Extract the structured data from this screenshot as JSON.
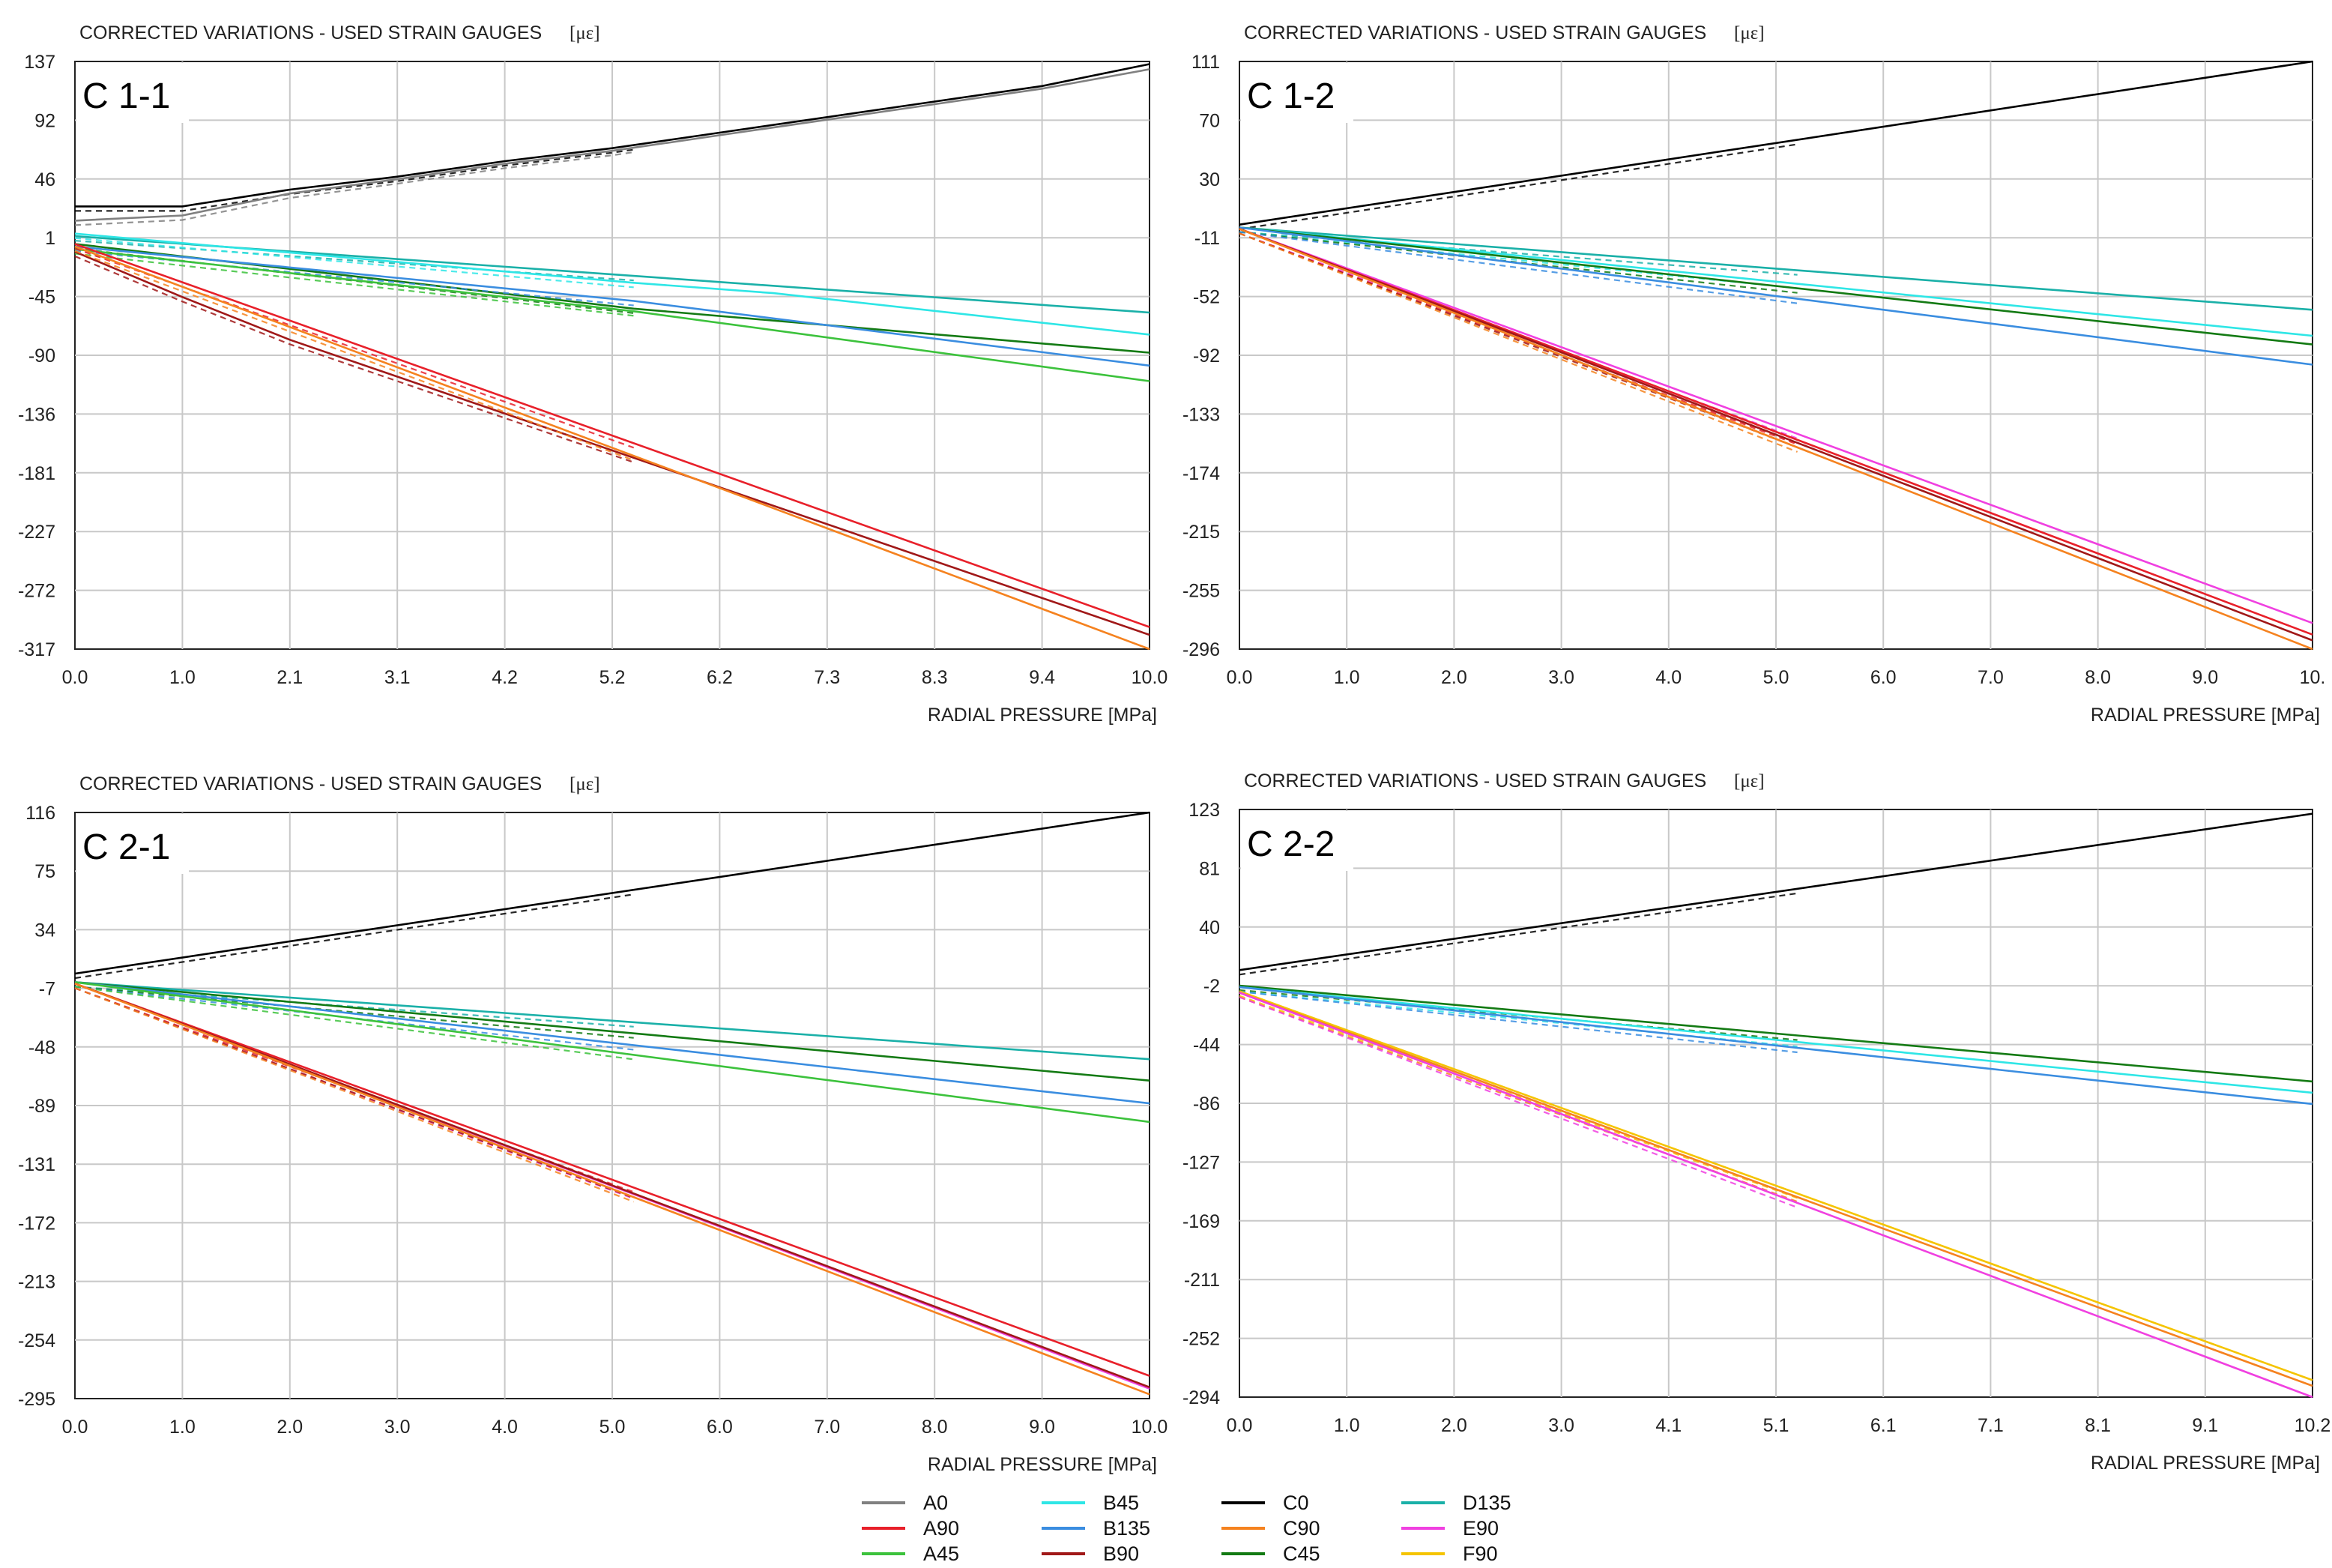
{
  "series_colors": {
    "A0": "#808080",
    "A90": "#e8202a",
    "A45": "#3cc23c",
    "B45": "#2ee6e6",
    "B135": "#3a8de0",
    "B90": "#a01818",
    "C0": "#000000",
    "C90": "#f5821f",
    "C45": "#137a13",
    "D135": "#1ab0a8",
    "E90": "#f040e0",
    "F90": "#f5c400"
  },
  "legend": [
    {
      "label": "A0"
    },
    {
      "label": "A90"
    },
    {
      "label": "A45"
    },
    {
      "label": "B45"
    },
    {
      "label": "B135"
    },
    {
      "label": "B90"
    },
    {
      "label": "C0"
    },
    {
      "label": "C90"
    },
    {
      "label": "C45"
    },
    {
      "label": "D135"
    },
    {
      "label": "E90"
    },
    {
      "label": "F90"
    }
  ],
  "chart_data": [
    {
      "type": "line",
      "panel_label": "C 1-1",
      "title": "CORRECTED VARIATIONS - USED STRAIN GAUGES",
      "unit": "[με]",
      "xlabel": "RADIAL PRESSURE [MPa]",
      "ylabel": "",
      "xlim": [
        0.0,
        10.0
      ],
      "ylim": [
        -317,
        137
      ],
      "xticks": [
        "0.0",
        "1.0",
        "2.1",
        "3.1",
        "4.2",
        "5.2",
        "6.2",
        "7.3",
        "8.3",
        "9.4",
        "10.0"
      ],
      "yticks": [
        "137",
        "92",
        "46",
        "1",
        "-45",
        "-90",
        "-136",
        "-181",
        "-227",
        "-272",
        "-317"
      ],
      "series": [
        {
          "name": "C0",
          "x": [
            0,
            1,
            2,
            3,
            4,
            5,
            6,
            7,
            8,
            9,
            10
          ],
          "values": [
            25,
            25,
            38,
            48,
            60,
            70,
            82,
            94,
            106,
            118,
            135
          ]
        },
        {
          "name": "A0",
          "x": [
            0,
            1,
            2,
            3,
            4,
            5,
            6,
            7,
            8,
            9,
            10
          ],
          "values": [
            14,
            18,
            35,
            46,
            58,
            68,
            80,
            92,
            104,
            116,
            131
          ]
        },
        {
          "name": "D135",
          "x": [
            0,
            10
          ],
          "values": [
            2,
            -57
          ]
        },
        {
          "name": "B45",
          "x": [
            0,
            5.2,
            6.5,
            10
          ],
          "values": [
            4,
            -34,
            -42,
            -74
          ]
        },
        {
          "name": "C45",
          "x": [
            0,
            5.2,
            10
          ],
          "values": [
            -4,
            -54,
            -88
          ]
        },
        {
          "name": "B135",
          "x": [
            0,
            5.2,
            10
          ],
          "values": [
            -6,
            -48,
            -98
          ]
        },
        {
          "name": "A45",
          "x": [
            0,
            5.2,
            10
          ],
          "values": [
            -8,
            -56,
            -110
          ]
        },
        {
          "name": "A90",
          "x": [
            0,
            10
          ],
          "values": [
            -4,
            -300
          ]
        },
        {
          "name": "B90",
          "x": [
            0,
            1,
            2,
            10
          ],
          "values": [
            -10,
            -45,
            -78,
            -306
          ]
        },
        {
          "name": "C90",
          "x": [
            0,
            10
          ],
          "values": [
            -6,
            -317
          ]
        }
      ]
    },
    {
      "type": "line",
      "panel_label": "C 1-2",
      "title": "CORRECTED VARIATIONS - USED STRAIN GAUGES",
      "unit": "[με]",
      "xlabel": "RADIAL PRESSURE [MPa]",
      "ylabel": "",
      "xlim": [
        0.0,
        10.0
      ],
      "ylim": [
        -296,
        111
      ],
      "xticks": [
        "0.0",
        "1.0",
        "2.0",
        "3.0",
        "4.0",
        "5.0",
        "6.0",
        "7.0",
        "8.0",
        "9.0",
        "10."
      ],
      "yticks": [
        "111",
        "70",
        "30",
        "-11",
        "-52",
        "-92",
        "-133",
        "-174",
        "-215",
        "-255",
        "-296"
      ],
      "series": [
        {
          "name": "C0",
          "x": [
            0,
            10
          ],
          "values": [
            -2,
            111
          ]
        },
        {
          "name": "D135",
          "x": [
            0,
            10
          ],
          "values": [
            -4,
            -61
          ]
        },
        {
          "name": "B45",
          "x": [
            0,
            10
          ],
          "values": [
            -4,
            -79
          ]
        },
        {
          "name": "C45",
          "x": [
            0,
            10
          ],
          "values": [
            -4,
            -85
          ]
        },
        {
          "name": "B135",
          "x": [
            0,
            10
          ],
          "values": [
            -4,
            -99
          ]
        },
        {
          "name": "E90",
          "x": [
            0,
            10
          ],
          "values": [
            -5,
            -278
          ]
        },
        {
          "name": "A90",
          "x": [
            0,
            10
          ],
          "values": [
            -5,
            -286
          ]
        },
        {
          "name": "B90",
          "x": [
            0,
            10
          ],
          "values": [
            -5,
            -290
          ]
        },
        {
          "name": "C90",
          "x": [
            0,
            10
          ],
          "values": [
            -5,
            -296
          ]
        }
      ]
    },
    {
      "type": "line",
      "panel_label": "C 2-1",
      "title": "CORRECTED VARIATIONS - USED STRAIN GAUGES",
      "unit": "[με]",
      "xlabel": "RADIAL PRESSURE [MPa]",
      "ylabel": "",
      "xlim": [
        0.0,
        10.0
      ],
      "ylim": [
        -295,
        116
      ],
      "xticks": [
        "0.0",
        "1.0",
        "2.0",
        "3.0",
        "4.0",
        "5.0",
        "6.0",
        "7.0",
        "8.0",
        "9.0",
        "10.0"
      ],
      "yticks": [
        "116",
        "75",
        "34",
        "-7",
        "-48",
        "-89",
        "-131",
        "-172",
        "-213",
        "-254",
        "-295"
      ],
      "series": [
        {
          "name": "C0",
          "x": [
            0,
            10
          ],
          "values": [
            3,
            116
          ]
        },
        {
          "name": "D135",
          "x": [
            0,
            10
          ],
          "values": [
            -3,
            -57
          ]
        },
        {
          "name": "C45",
          "x": [
            0,
            10
          ],
          "values": [
            -3,
            -72
          ]
        },
        {
          "name": "B135",
          "x": [
            0,
            10
          ],
          "values": [
            -3,
            -88
          ]
        },
        {
          "name": "A45",
          "x": [
            0,
            10
          ],
          "values": [
            -3,
            -101
          ]
        },
        {
          "name": "A90",
          "x": [
            0,
            10
          ],
          "values": [
            -4,
            -279
          ]
        },
        {
          "name": "E90",
          "x": [
            0,
            10
          ],
          "values": [
            -4,
            -288
          ]
        },
        {
          "name": "B90",
          "x": [
            0,
            10
          ],
          "values": [
            -4,
            -287
          ]
        },
        {
          "name": "C90",
          "x": [
            0,
            10
          ],
          "values": [
            -4,
            -292
          ]
        }
      ]
    },
    {
      "type": "line",
      "panel_label": "C 2-2",
      "title": "CORRECTED VARIATIONS - USED STRAIN GAUGES",
      "unit": "[με]",
      "xlabel": "RADIAL PRESSURE [MPa]",
      "ylabel": "",
      "xlim": [
        0.0,
        10.2
      ],
      "ylim": [
        -294,
        123
      ],
      "xticks": [
        "0.0",
        "1.0",
        "2.0",
        "3.0",
        "4.1",
        "5.1",
        "6.1",
        "7.1",
        "8.1",
        "9.1",
        "10.2"
      ],
      "yticks": [
        "123",
        "81",
        "40",
        "-2",
        "-44",
        "-86",
        "-127",
        "-169",
        "-211",
        "-252",
        "-294"
      ],
      "series": [
        {
          "name": "C0",
          "x": [
            0,
            10.2
          ],
          "values": [
            9,
            120
          ]
        },
        {
          "name": "C45",
          "x": [
            0,
            10.2
          ],
          "values": [
            -2,
            -70
          ]
        },
        {
          "name": "B45",
          "x": [
            0,
            10.2
          ],
          "values": [
            -3,
            -78
          ]
        },
        {
          "name": "B135",
          "x": [
            0,
            10.2
          ],
          "values": [
            -3,
            -86
          ]
        },
        {
          "name": "F90",
          "x": [
            0,
            10.2
          ],
          "values": [
            -6,
            -282
          ]
        },
        {
          "name": "C90",
          "x": [
            0,
            10.2
          ],
          "values": [
            -7,
            -286
          ]
        },
        {
          "name": "E90",
          "x": [
            0,
            10.2
          ],
          "values": [
            -7,
            -294
          ]
        }
      ]
    }
  ]
}
